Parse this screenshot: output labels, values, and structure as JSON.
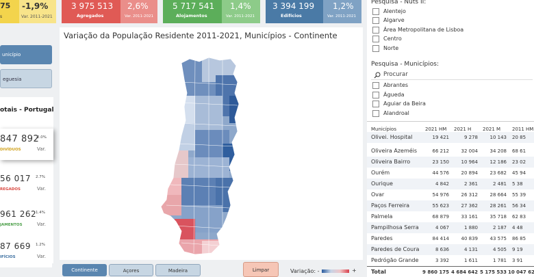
{
  "top_left": {
    "value": "75",
    "pct": "-1,9%",
    "pct_label": "Var. 2011-2021",
    "label": "s"
  },
  "kpis": [
    {
      "value": "3 975 513",
      "label": "Agregados",
      "pct": "2,6%",
      "pct_label": "Var. 2011-2021",
      "color": "#e05a55",
      "light": "#ea8e8a"
    },
    {
      "value": "5 717 541",
      "label": "Alojamentos",
      "pct": "1,4%",
      "pct_label": "Var. 2011-2021",
      "color": "#5cae5a",
      "light": "#8dcb89"
    },
    {
      "value": "3 394 199",
      "label": "Edifícios",
      "pct": "1,2%",
      "pct_label": "Var. 2011-2021",
      "color": "#4a7aa6",
      "light": "#7fa2c4"
    }
  ],
  "nav": {
    "municipio": "unicípio",
    "freguesia": "eguesia"
  },
  "totais": {
    "title": "otais - Portugal"
  },
  "stats": [
    {
      "num": "847 892",
      "label": "DIVÍDUOS",
      "pct": "-2.0%",
      "var": "Var.",
      "color": "#d1a21c"
    },
    {
      "num": "56 017",
      "label": "REGADOS",
      "pct": "2.7%",
      "var": "Var.",
      "color": "#d9473f"
    },
    {
      "num": "961 262",
      "label": "JAMENTOS",
      "pct": "1.4%",
      "var": "Var.",
      "color": "#4a9e47"
    },
    {
      "num": "87 669",
      "label": "IFÍCIOS",
      "pct": "1.2%",
      "var": "Var.",
      "color": "#3c6fa0"
    }
  ],
  "map": {
    "title": "Variação da População Residente 2011-2021, Municípios - Continente",
    "legend_label": "Variação: -",
    "legend_plus": "+"
  },
  "bottom_buttons": {
    "continente": "Continente",
    "acores": "Açores",
    "madeira": "Madeira",
    "limpar": "Limpar"
  },
  "nuts": {
    "title": "Pesquisa - Nuts II:",
    "items": [
      "Alentejo",
      "Algarve",
      "Área Metropolitana de Lisboa",
      "Centro",
      "Norte"
    ]
  },
  "municipios_search": {
    "title": "Pesquisa - Municípios:",
    "placeholder": "Procurar",
    "items": [
      "Abrantes",
      "Águeda",
      "Aguiar da Beira",
      "Alandroal"
    ]
  },
  "table": {
    "headers": [
      "Municípios",
      "2021 HM",
      "2021 H",
      "2021 M",
      "2011 HM"
    ],
    "rows": [
      [
        "Olivei. Hospital",
        "19 421",
        "9 278",
        "10 143",
        "20 85"
      ],
      [
        "Oliveira Azeméis",
        "66 212",
        "32 004",
        "34 208",
        "68 61"
      ],
      [
        "Oliveira Bairro",
        "23 150",
        "10 964",
        "12 186",
        "23 02"
      ],
      [
        "Ourém",
        "44 576",
        "20 894",
        "23 682",
        "45 94"
      ],
      [
        "Ourique",
        "4 842",
        "2 361",
        "2 481",
        "5 38"
      ],
      [
        "Ovar",
        "54 976",
        "26 312",
        "28 664",
        "55 39"
      ],
      [
        "Paços Ferreira",
        "55 623",
        "27 362",
        "28 261",
        "56 34"
      ],
      [
        "Palmela",
        "68 879",
        "33 161",
        "35 718",
        "62 83"
      ],
      [
        "Pampilhosa Serra",
        "4 067",
        "1 880",
        "2 187",
        "4 48"
      ],
      [
        "Paredes",
        "84 414",
        "40 839",
        "43 575",
        "86 85"
      ],
      [
        "Paredes de Coura",
        "8 636",
        "4 131",
        "4 505",
        "9 19"
      ],
      [
        "Pedrógão Grande",
        "3 392",
        "1 611",
        "1 781",
        "3 91"
      ]
    ],
    "total": [
      "Total",
      "9 860 175",
      "4 684 642",
      "5 175 533",
      "10 047 62"
    ]
  }
}
